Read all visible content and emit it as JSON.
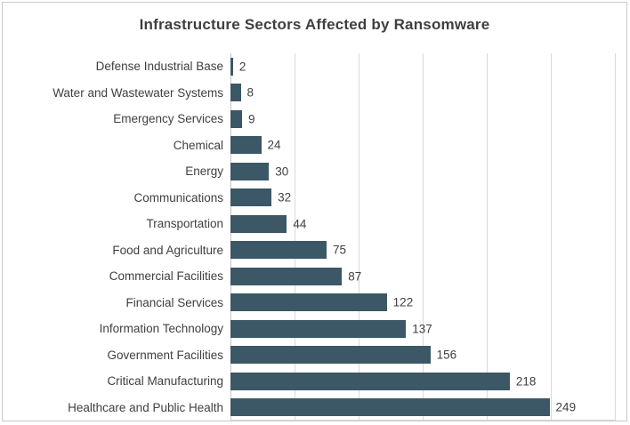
{
  "chart_data": {
    "type": "bar",
    "orientation": "horizontal",
    "title": "Infrastructure Sectors Affected by Ransomware",
    "categories": [
      "Defense Industrial Base",
      "Water and Wastewater Systems",
      "Emergency Services",
      "Chemical",
      "Energy",
      "Communications",
      "Transportation",
      "Food and Agriculture",
      "Commercial Facilities",
      "Financial Services",
      "Information Technology",
      "Government Facilities",
      "Critical Manufacturing",
      "Healthcare and Public Health"
    ],
    "values": [
      2,
      8,
      9,
      24,
      30,
      32,
      44,
      75,
      87,
      122,
      137,
      156,
      218,
      249
    ],
    "data_labels": [
      2,
      8,
      9,
      24,
      30,
      32,
      44,
      75,
      87,
      122,
      137,
      156,
      218,
      249
    ],
    "xlabel": "",
    "ylabel": "",
    "xlim": [
      0,
      300
    ],
    "x_major_unit": 50,
    "grid": true,
    "legend": false,
    "colors": {
      "bar": "#3c5765",
      "gridline": "#d9d9d9",
      "axis_line": "#c6c6c6",
      "text": "#404040",
      "title_text": "#3f3f3f",
      "chart_border": "#c9c9c9",
      "background": "#ffffff"
    }
  }
}
